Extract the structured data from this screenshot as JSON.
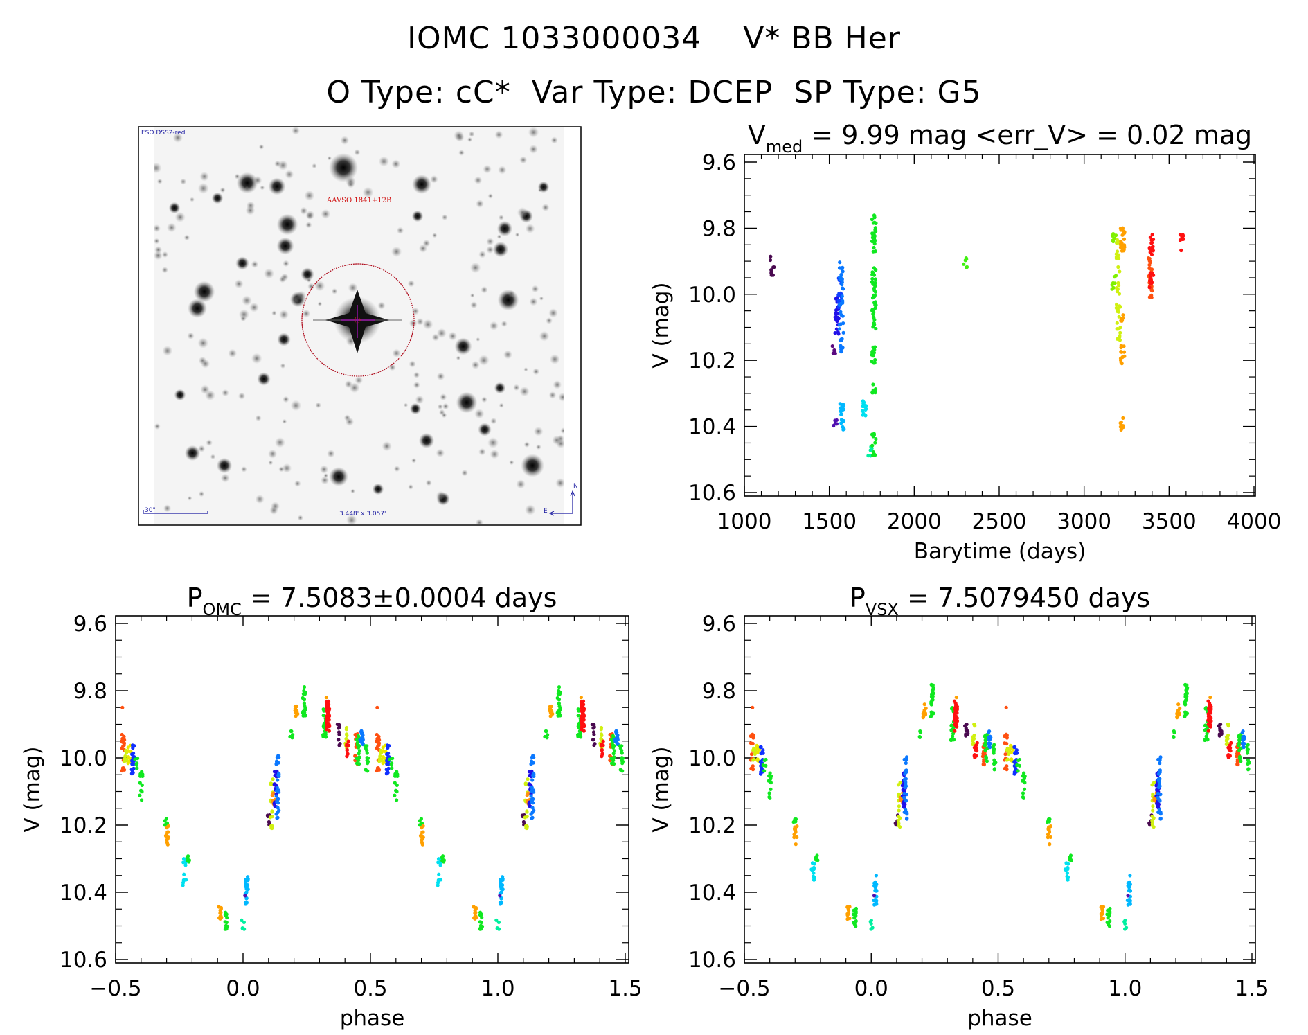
{
  "header": {
    "title": "IOMC 1033000034    V* BB Her",
    "subtitle": "O Type: cC*  Var Type: DCEP  SP Type: G5"
  },
  "sky_image": {
    "survey_label": "ESO DSS2-red",
    "target_label": "AAVSO 1841+12B",
    "scale_bar_label": "30\"",
    "field_size_label": "3.448' x 3.057'",
    "compass_north": "N",
    "compass_east": "E",
    "marker_color": "#b01020",
    "crosshair_color": "#9010a0",
    "label_color": "#1a1aa0"
  },
  "chart_data": [
    {
      "id": "lightcurve",
      "type": "scatter",
      "title_main": "V",
      "title_sub": "med",
      "title_rest": " = 9.99 mag <err_V> = 0.02 mag",
      "xlabel": "Barytime (days)",
      "ylabel": "V (mag)",
      "xlim": [
        1000,
        4000
      ],
      "ylim": [
        9.6,
        10.6
      ],
      "y_inverted": true,
      "xticks": [
        1000,
        1500,
        2000,
        2500,
        3000,
        3500,
        4000
      ],
      "xtick_labels": [
        "1000",
        "1500",
        "2000",
        "2500",
        "3000",
        "3500",
        "4000"
      ],
      "yticks": [
        9.6,
        9.8,
        10.0,
        10.2,
        10.4,
        10.6
      ],
      "ytick_labels": [
        "9.6",
        "9.8",
        "10.0",
        "10.2",
        "10.4",
        "10.6"
      ],
      "grid": false,
      "clusters": [
        {
          "x": 1163,
          "ymin": 9.88,
          "ymax": 9.95,
          "n": 9,
          "color": "#4a0a50"
        },
        {
          "x": 1530,
          "ymin": 10.15,
          "ymax": 10.18,
          "n": 5,
          "color": "#5a0a80"
        },
        {
          "x": 1546,
          "ymin": 10.01,
          "ymax": 10.13,
          "n": 22,
          "color": "#2010e8"
        },
        {
          "x": 1533,
          "ymin": 10.38,
          "ymax": 10.4,
          "n": 5,
          "color": "#5010b0"
        },
        {
          "x": 1565,
          "ymin": 9.95,
          "ymax": 10.05,
          "n": 20,
          "color": "#1040ff"
        },
        {
          "x": 1572,
          "ymin": 9.9,
          "ymax": 10.18,
          "n": 40,
          "color": "#0a78ff"
        },
        {
          "x": 1575,
          "ymin": 10.33,
          "ymax": 10.41,
          "n": 20,
          "color": "#00b8ff"
        },
        {
          "x": 1706,
          "ymin": 10.29,
          "ymax": 10.37,
          "n": 14,
          "color": "#00e0f0"
        },
        {
          "x": 1739,
          "ymin": 10.46,
          "ymax": 10.49,
          "n": 6,
          "color": "#00f0a0"
        },
        {
          "x": 1763,
          "ymin": 9.76,
          "ymax": 9.88,
          "n": 30,
          "color": "#10e820"
        },
        {
          "x": 1763,
          "ymin": 9.92,
          "ymax": 10.11,
          "n": 45,
          "color": "#10e820"
        },
        {
          "x": 1760,
          "ymin": 10.15,
          "ymax": 10.21,
          "n": 14,
          "color": "#10e820"
        },
        {
          "x": 1763,
          "ymin": 10.27,
          "ymax": 10.3,
          "n": 6,
          "color": "#10e820"
        },
        {
          "x": 1763,
          "ymin": 10.42,
          "ymax": 10.49,
          "n": 12,
          "color": "#10e820"
        },
        {
          "x": 2303,
          "ymin": 9.89,
          "ymax": 9.92,
          "n": 6,
          "color": "#40f010"
        },
        {
          "x": 3177,
          "ymin": 9.81,
          "ymax": 9.85,
          "n": 7,
          "color": "#80f000"
        },
        {
          "x": 3177,
          "ymin": 9.94,
          "ymax": 9.99,
          "n": 7,
          "color": "#80f000"
        },
        {
          "x": 3202,
          "ymin": 9.83,
          "ymax": 10.16,
          "n": 40,
          "color": "#d0f010"
        },
        {
          "x": 3226,
          "ymin": 9.79,
          "ymax": 9.87,
          "n": 22,
          "color": "#ffa000"
        },
        {
          "x": 3226,
          "ymin": 10.06,
          "ymax": 10.09,
          "n": 6,
          "color": "#ffa000"
        },
        {
          "x": 3226,
          "ymin": 10.15,
          "ymax": 10.21,
          "n": 12,
          "color": "#ffa000"
        },
        {
          "x": 3226,
          "ymin": 10.37,
          "ymax": 10.41,
          "n": 10,
          "color": "#ffa000"
        },
        {
          "x": 3397,
          "ymin": 9.81,
          "ymax": 9.88,
          "n": 20,
          "color": "#ff1010"
        },
        {
          "x": 3390,
          "ymin": 9.89,
          "ymax": 10.01,
          "n": 30,
          "color": "#ff5010"
        },
        {
          "x": 3397,
          "ymin": 9.92,
          "ymax": 9.98,
          "n": 12,
          "color": "#ff1010"
        },
        {
          "x": 3575,
          "ymin": 9.81,
          "ymax": 9.87,
          "n": 10,
          "color": "#ff1010"
        }
      ]
    },
    {
      "id": "phase-omc",
      "type": "scatter",
      "title_main": "P",
      "title_sub": "OMC",
      "title_rest": " = 7.5083±0.0004 days",
      "xlabel": "phase",
      "ylabel": "V (mag)",
      "xlim": [
        -0.5,
        1.5
      ],
      "ylim": [
        9.6,
        10.6
      ],
      "y_inverted": true,
      "xticks": [
        -0.5,
        0.0,
        0.5,
        1.0,
        1.5
      ],
      "xtick_labels": [
        "−0.5",
        "0.0",
        "0.5",
        "1.0",
        "1.5"
      ],
      "yticks": [
        9.6,
        9.8,
        10.0,
        10.2,
        10.4,
        10.6
      ],
      "ytick_labels": [
        "9.6",
        "9.8",
        "10.0",
        "10.2",
        "10.4",
        "10.6"
      ],
      "grid": false,
      "phase_repeat": [
        -1,
        0,
        1
      ],
      "clusters": [
        {
          "x": 0.0,
          "ymin": 10.48,
          "ymax": 10.51,
          "n": 5,
          "color": "#00f0a0"
        },
        {
          "x": 0.015,
          "ymin": 10.35,
          "ymax": 10.44,
          "n": 22,
          "color": "#00b8ff"
        },
        {
          "x": 0.012,
          "ymin": 10.41,
          "ymax": 10.41,
          "n": 1,
          "color": "#5010b0"
        },
        {
          "x": 0.1,
          "ymin": 10.17,
          "ymax": 10.2,
          "n": 6,
          "color": "#4a0a50"
        },
        {
          "x": 0.112,
          "ymin": 10.06,
          "ymax": 10.21,
          "n": 18,
          "color": "#d0f010"
        },
        {
          "x": 0.12,
          "ymin": 10.1,
          "ymax": 10.14,
          "n": 8,
          "color": "#ff9010"
        },
        {
          "x": 0.128,
          "ymin": 10.04,
          "ymax": 10.15,
          "n": 22,
          "color": "#2010e8"
        },
        {
          "x": 0.135,
          "ymin": 9.99,
          "ymax": 10.19,
          "n": 30,
          "color": "#0a78ff"
        },
        {
          "x": 0.19,
          "ymin": 9.92,
          "ymax": 9.94,
          "n": 5,
          "color": "#10e820"
        },
        {
          "x": 0.21,
          "ymin": 9.84,
          "ymax": 9.88,
          "n": 14,
          "color": "#ffa000"
        },
        {
          "x": 0.24,
          "ymin": 9.78,
          "ymax": 9.88,
          "n": 22,
          "color": "#10e820"
        },
        {
          "x": 0.32,
          "ymin": 9.85,
          "ymax": 9.95,
          "n": 20,
          "color": "#10e820"
        },
        {
          "x": 0.333,
          "ymin": 9.83,
          "ymax": 9.92,
          "n": 40,
          "color": "#ff1010"
        },
        {
          "x": 0.33,
          "ymin": 9.82,
          "ymax": 9.82,
          "n": 1,
          "color": "#ffa000"
        },
        {
          "x": 0.375,
          "ymin": 9.9,
          "ymax": 9.97,
          "n": 10,
          "color": "#4a0a50"
        },
        {
          "x": 0.405,
          "ymin": 9.9,
          "ymax": 9.98,
          "n": 12,
          "color": "#d0f010"
        },
        {
          "x": 0.412,
          "ymin": 9.95,
          "ymax": 10.0,
          "n": 10,
          "color": "#ff1010"
        },
        {
          "x": 0.445,
          "ymin": 9.92,
          "ymax": 10.02,
          "n": 16,
          "color": "#ff5010"
        },
        {
          "x": 0.452,
          "ymin": 9.93,
          "ymax": 10.02,
          "n": 18,
          "color": "#10e820"
        },
        {
          "x": 0.465,
          "ymin": 9.92,
          "ymax": 9.97,
          "n": 16,
          "color": "#0a78ff"
        },
        {
          "x": 0.485,
          "ymin": 9.96,
          "ymax": 10.04,
          "n": 12,
          "color": "#10e820"
        },
        {
          "x": 0.53,
          "ymin": 9.85,
          "ymax": 9.85,
          "n": 1,
          "color": "#ff5010"
        },
        {
          "x": 0.53,
          "ymin": 9.93,
          "ymax": 10.04,
          "n": 18,
          "color": "#ff5010"
        },
        {
          "x": 0.54,
          "ymin": 9.97,
          "ymax": 10.01,
          "n": 8,
          "color": "#d0f010"
        },
        {
          "x": 0.555,
          "ymin": 9.96,
          "ymax": 10.02,
          "n": 10,
          "color": "#e8e800"
        },
        {
          "x": 0.568,
          "ymin": 9.96,
          "ymax": 10.05,
          "n": 20,
          "color": "#1030ff"
        },
        {
          "x": 0.58,
          "ymin": 10.0,
          "ymax": 10.04,
          "n": 6,
          "color": "#10e820"
        },
        {
          "x": 0.6,
          "ymin": 10.04,
          "ymax": 10.13,
          "n": 12,
          "color": "#10e820"
        },
        {
          "x": 0.698,
          "ymin": 10.18,
          "ymax": 10.2,
          "n": 5,
          "color": "#10e820"
        },
        {
          "x": 0.702,
          "ymin": 10.2,
          "ymax": 10.26,
          "n": 12,
          "color": "#ffa000"
        },
        {
          "x": 0.77,
          "ymin": 10.3,
          "ymax": 10.38,
          "n": 12,
          "color": "#00e0f0"
        },
        {
          "x": 0.785,
          "ymin": 10.29,
          "ymax": 10.31,
          "n": 6,
          "color": "#10e820"
        },
        {
          "x": 0.91,
          "ymin": 10.44,
          "ymax": 10.48,
          "n": 12,
          "color": "#ffa000"
        },
        {
          "x": 0.935,
          "ymin": 10.44,
          "ymax": 10.51,
          "n": 12,
          "color": "#10e820"
        }
      ]
    },
    {
      "id": "phase-vsx",
      "type": "scatter",
      "title_main": "P",
      "title_sub": "VSX",
      "title_rest": " = 7.5079450 days",
      "xlabel": "phase",
      "ylabel": "V (mag)",
      "xlim": [
        -0.5,
        1.5
      ],
      "ylim": [
        9.6,
        10.6
      ],
      "y_inverted": true,
      "xticks": [
        -0.5,
        0.0,
        0.5,
        1.0,
        1.5
      ],
      "xtick_labels": [
        "−0.5",
        "0.0",
        "0.5",
        "1.0",
        "1.5"
      ],
      "yticks": [
        9.6,
        9.8,
        10.0,
        10.2,
        10.4,
        10.6
      ],
      "ytick_labels": [
        "9.6",
        "9.8",
        "10.0",
        "10.2",
        "10.4",
        "10.6"
      ],
      "grid": false,
      "phase_repeat": [
        -1,
        0,
        1
      ],
      "clusters_same_as": "phase-omc"
    }
  ]
}
